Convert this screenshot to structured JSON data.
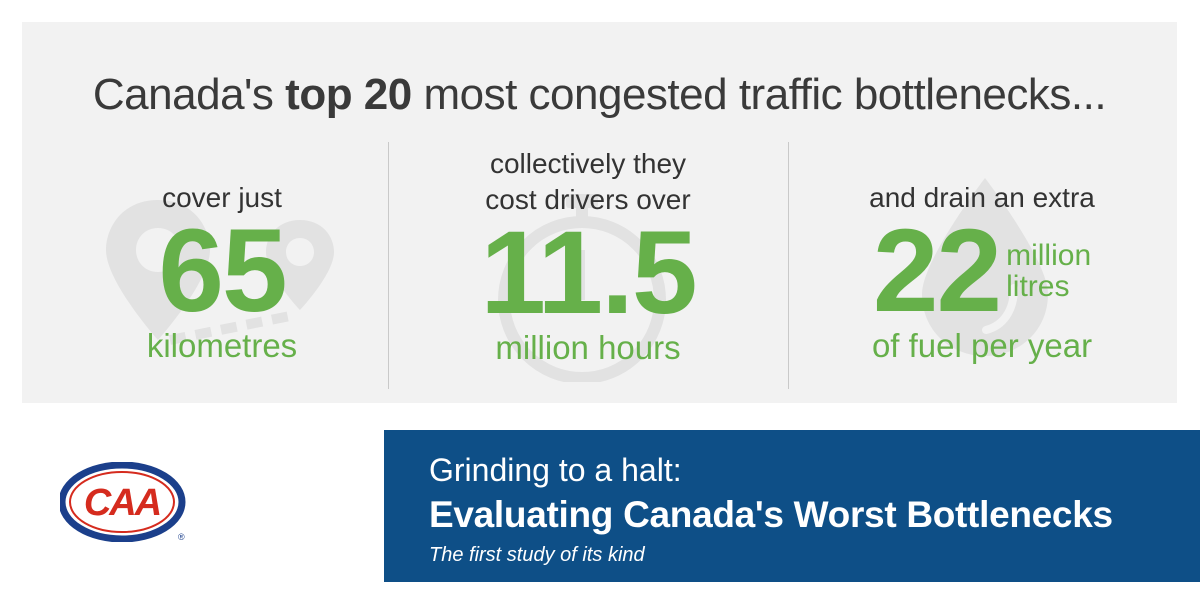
{
  "headline": {
    "pre": "Canada's ",
    "bold": "top 20",
    "post": " most congested traffic bottlenecks..."
  },
  "stats": [
    {
      "intro_lines": [
        "cover just"
      ],
      "number": "65",
      "unit": "kilometres",
      "icon": "map-pin-icon"
    },
    {
      "intro_lines": [
        "collectively they",
        "cost drivers over"
      ],
      "number": "11.5",
      "unit": "million hours",
      "icon": "stopwatch-icon"
    },
    {
      "intro_lines": [
        "and drain an extra"
      ],
      "number": "22",
      "unit_stack": [
        "million",
        "litres"
      ],
      "unit": "of fuel per year",
      "icon": "fuel-drop-icon"
    }
  ],
  "logo": {
    "text": "CAA",
    "registered": "®"
  },
  "banner": {
    "line1": "Grinding to a halt:",
    "line2": "Evaluating Canada's Worst Bottlenecks",
    "line3": "The first study of its kind"
  },
  "colors": {
    "panel": "#f2f2f2",
    "green": "#66b04a",
    "banner": "#0e4f87",
    "logo_red": "#d52b1e",
    "logo_blue": "#1b3f8b"
  }
}
